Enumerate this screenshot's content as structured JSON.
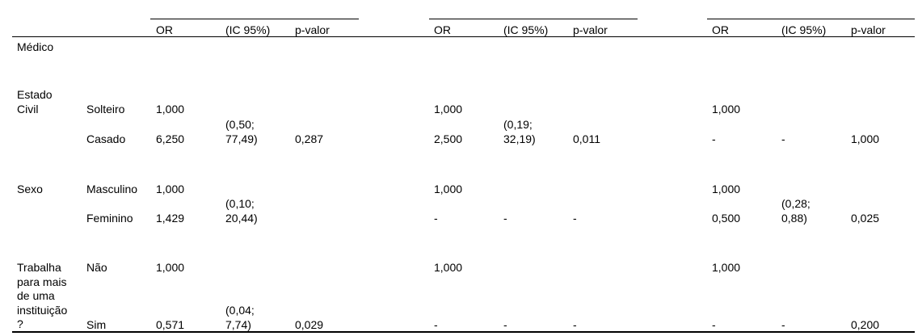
{
  "headers": {
    "or": "OR",
    "ci": "(IC 95%)",
    "p": "p-valor"
  },
  "section_label": "Médico",
  "rows": {
    "estado_civil": {
      "label_line1": "Estado",
      "label_line2": "Civil",
      "solteiro": {
        "label": "Solteiro",
        "g1": {
          "or": "1,000"
        },
        "g2": {
          "or": "1,000"
        },
        "g3": {
          "or": "1,000"
        }
      },
      "casado": {
        "label": "Casado",
        "g1": {
          "ci_line1": "(0,50;",
          "ci_line2": "77,49)",
          "or": "6,250",
          "p": "0,287"
        },
        "g2": {
          "ci_line1": "(0,19;",
          "ci_line2": "32,19)",
          "or": "2,500",
          "p": "0,011"
        },
        "g3": {
          "or": "-",
          "ci": "-",
          "p": "1,000"
        }
      }
    },
    "sexo": {
      "label": "Sexo",
      "masculino": {
        "label": "Masculino",
        "g1": {
          "or": "1,000"
        },
        "g2": {
          "or": "1,000"
        },
        "g3": {
          "or": "1,000"
        }
      },
      "feminino": {
        "label": "Feminino",
        "g1": {
          "ci_line1": "(0,10;",
          "ci_line2": "20,44)",
          "or": "1,429"
        },
        "g2": {
          "or": "-",
          "ci": "-",
          "p": "-"
        },
        "g3": {
          "ci_line1": "(0,28;",
          "ci_line2": "0,88)",
          "or": "0,500",
          "p": "0,025"
        }
      }
    },
    "trabalha": {
      "label_line1": "Trabalha",
      "label_line2": "para mais",
      "label_line3": "de uma",
      "label_line4": "instituição",
      "label_line5": "?",
      "nao": {
        "label": "Não",
        "g1": {
          "or": "1,000"
        },
        "g2": {
          "or": "1,000"
        },
        "g3": {
          "or": "1,000"
        }
      },
      "sim": {
        "label": "Sim",
        "g1": {
          "ci_line1": "(0,04;",
          "ci_line2": "7,74)",
          "or": "0,571",
          "p": "0,029"
        },
        "g2": {
          "or": "-",
          "ci": "-",
          "p": "-"
        },
        "g3": {
          "or": "-",
          "ci": "-",
          "p": "0,200"
        }
      }
    }
  }
}
